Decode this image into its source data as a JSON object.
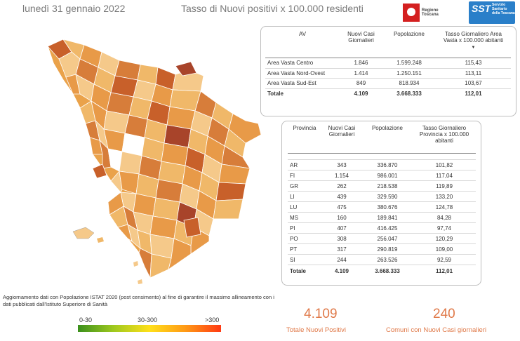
{
  "header": {
    "date": "lunedì 31 gennaio 2022",
    "title": "Tasso di Nuovi positivi x 100.000 residenti"
  },
  "logos": {
    "regione": "Regione Toscana",
    "sst_big": "SST",
    "sst_small": "Servizio Sanitario della Toscana"
  },
  "area_vasta_table": {
    "headers": [
      "AV",
      "Nuovi Casi Giornalieri",
      "Popolazione",
      "Tasso Giornaliero Area Vasta x 100.000 abitanti"
    ],
    "rows": [
      {
        "name": "Area Vasta Centro",
        "cases": "1.846",
        "pop": "1.599.248",
        "rate": "115,43"
      },
      {
        "name": "Area Vasta Nord-Ovest",
        "cases": "1.414",
        "pop": "1.250.151",
        "rate": "113,11"
      },
      {
        "name": "Area Vasta Sud-Est",
        "cases": "849",
        "pop": "818.934",
        "rate": "103,67"
      }
    ],
    "total": {
      "name": "Totale",
      "cases": "4.109",
      "pop": "3.668.333",
      "rate": "112,01"
    }
  },
  "provincia_table": {
    "headers": [
      "Provincia",
      "Nuovi Casi Giornalieri",
      "Popolazione",
      "Tasso Giornaliero Provincia x 100.000 abitanti"
    ],
    "rows": [
      {
        "name": "AR",
        "cases": "343",
        "pop": "336.870",
        "rate": "101,82"
      },
      {
        "name": "FI",
        "cases": "1.154",
        "pop": "986.001",
        "rate": "117,04"
      },
      {
        "name": "GR",
        "cases": "262",
        "pop": "218.538",
        "rate": "119,89"
      },
      {
        "name": "LI",
        "cases": "439",
        "pop": "329.590",
        "rate": "133,20"
      },
      {
        "name": "LU",
        "cases": "475",
        "pop": "380.676",
        "rate": "124,78"
      },
      {
        "name": "MS",
        "cases": "160",
        "pop": "189.841",
        "rate": "84,28"
      },
      {
        "name": "PI",
        "cases": "407",
        "pop": "416.425",
        "rate": "97,74"
      },
      {
        "name": "PO",
        "cases": "308",
        "pop": "256.047",
        "rate": "120,29"
      },
      {
        "name": "PT",
        "cases": "317",
        "pop": "290.819",
        "rate": "109,00"
      },
      {
        "name": "SI",
        "cases": "244",
        "pop": "263.526",
        "rate": "92,59"
      }
    ],
    "total": {
      "name": "Totale",
      "cases": "4.109",
      "pop": "3.668.333",
      "rate": "112,01"
    }
  },
  "note": "Aggiornamento dati con Popolazione ISTAT 2020 (post censimento) al fine di garantire il massimo allineamento con i dati pubblicati dall'Istituto Superiore di Sanità",
  "legend": {
    "low": "0-30",
    "mid": "30-300",
    "high": ">300"
  },
  "kpi": {
    "total_value": "4.109",
    "total_label": "Totale Nuovi Positivi",
    "comuni_value": "240",
    "comuni_label": "Comuni con Nuovi Casi giornalieri"
  },
  "colors": {
    "accent": "#e07a4a",
    "map_light": "#f5c98a",
    "map_mid": "#eaa24a",
    "map_dark": "#c8602a",
    "map_darkest": "#a8442a"
  }
}
